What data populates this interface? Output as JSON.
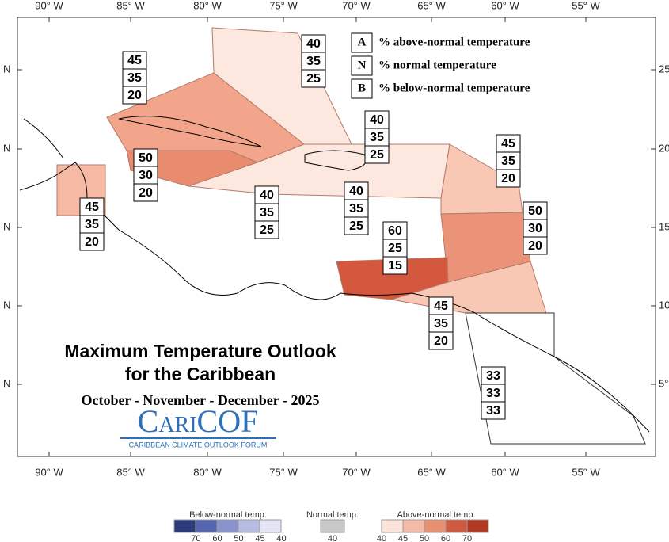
{
  "map": {
    "title_line_1": "Maximum Temperature Outlook",
    "title_line_2": "for the Caribbean",
    "period": "October - November - December - 2025",
    "logo": "CariCOF",
    "logo_subtitle": "CARIBBEAN CLIMATE OUTLOOK FORUM",
    "longitude_labels": [
      "90° W",
      "85° W",
      "80° W",
      "75° W",
      "70° W",
      "65° W",
      "60° W",
      "55° W"
    ],
    "latitude_labels_left": [
      "N",
      "N",
      "N",
      "N",
      "N"
    ],
    "latitude_labels_right": [
      "25",
      "20",
      "15",
      "10",
      "5°"
    ],
    "key": [
      {
        "letter": "A",
        "text": "% above-normal temperature"
      },
      {
        "letter": "N",
        "text": "% normal temperature"
      },
      {
        "letter": "B",
        "text": "% below-normal temperature"
      }
    ],
    "regions": [
      {
        "above": 40,
        "normal": 35,
        "below": 25
      },
      {
        "above": 45,
        "normal": 35,
        "below": 20
      },
      {
        "above": 50,
        "normal": 30,
        "below": 20
      },
      {
        "above": 45,
        "normal": 35,
        "below": 20
      },
      {
        "above": 40,
        "normal": 35,
        "below": 25
      },
      {
        "above": 40,
        "normal": 35,
        "below": 25
      },
      {
        "above": 40,
        "normal": 35,
        "below": 25
      },
      {
        "above": 45,
        "normal": 35,
        "below": 20
      },
      {
        "above": 50,
        "normal": 30,
        "below": 20
      },
      {
        "above": 60,
        "normal": 25,
        "below": 15
      },
      {
        "above": 45,
        "normal": 35,
        "below": 20
      },
      {
        "above": 33,
        "normal": 33,
        "below": 33
      }
    ],
    "colorbar": {
      "below_title": "Below-normal temp.",
      "below_ticks": [
        70,
        60,
        50,
        45,
        40
      ],
      "normal_title": "Normal temp.",
      "normal_ticks": [
        40
      ],
      "above_title": "Above-normal temp.",
      "above_ticks": [
        40,
        45,
        50,
        60,
        70
      ]
    }
  }
}
